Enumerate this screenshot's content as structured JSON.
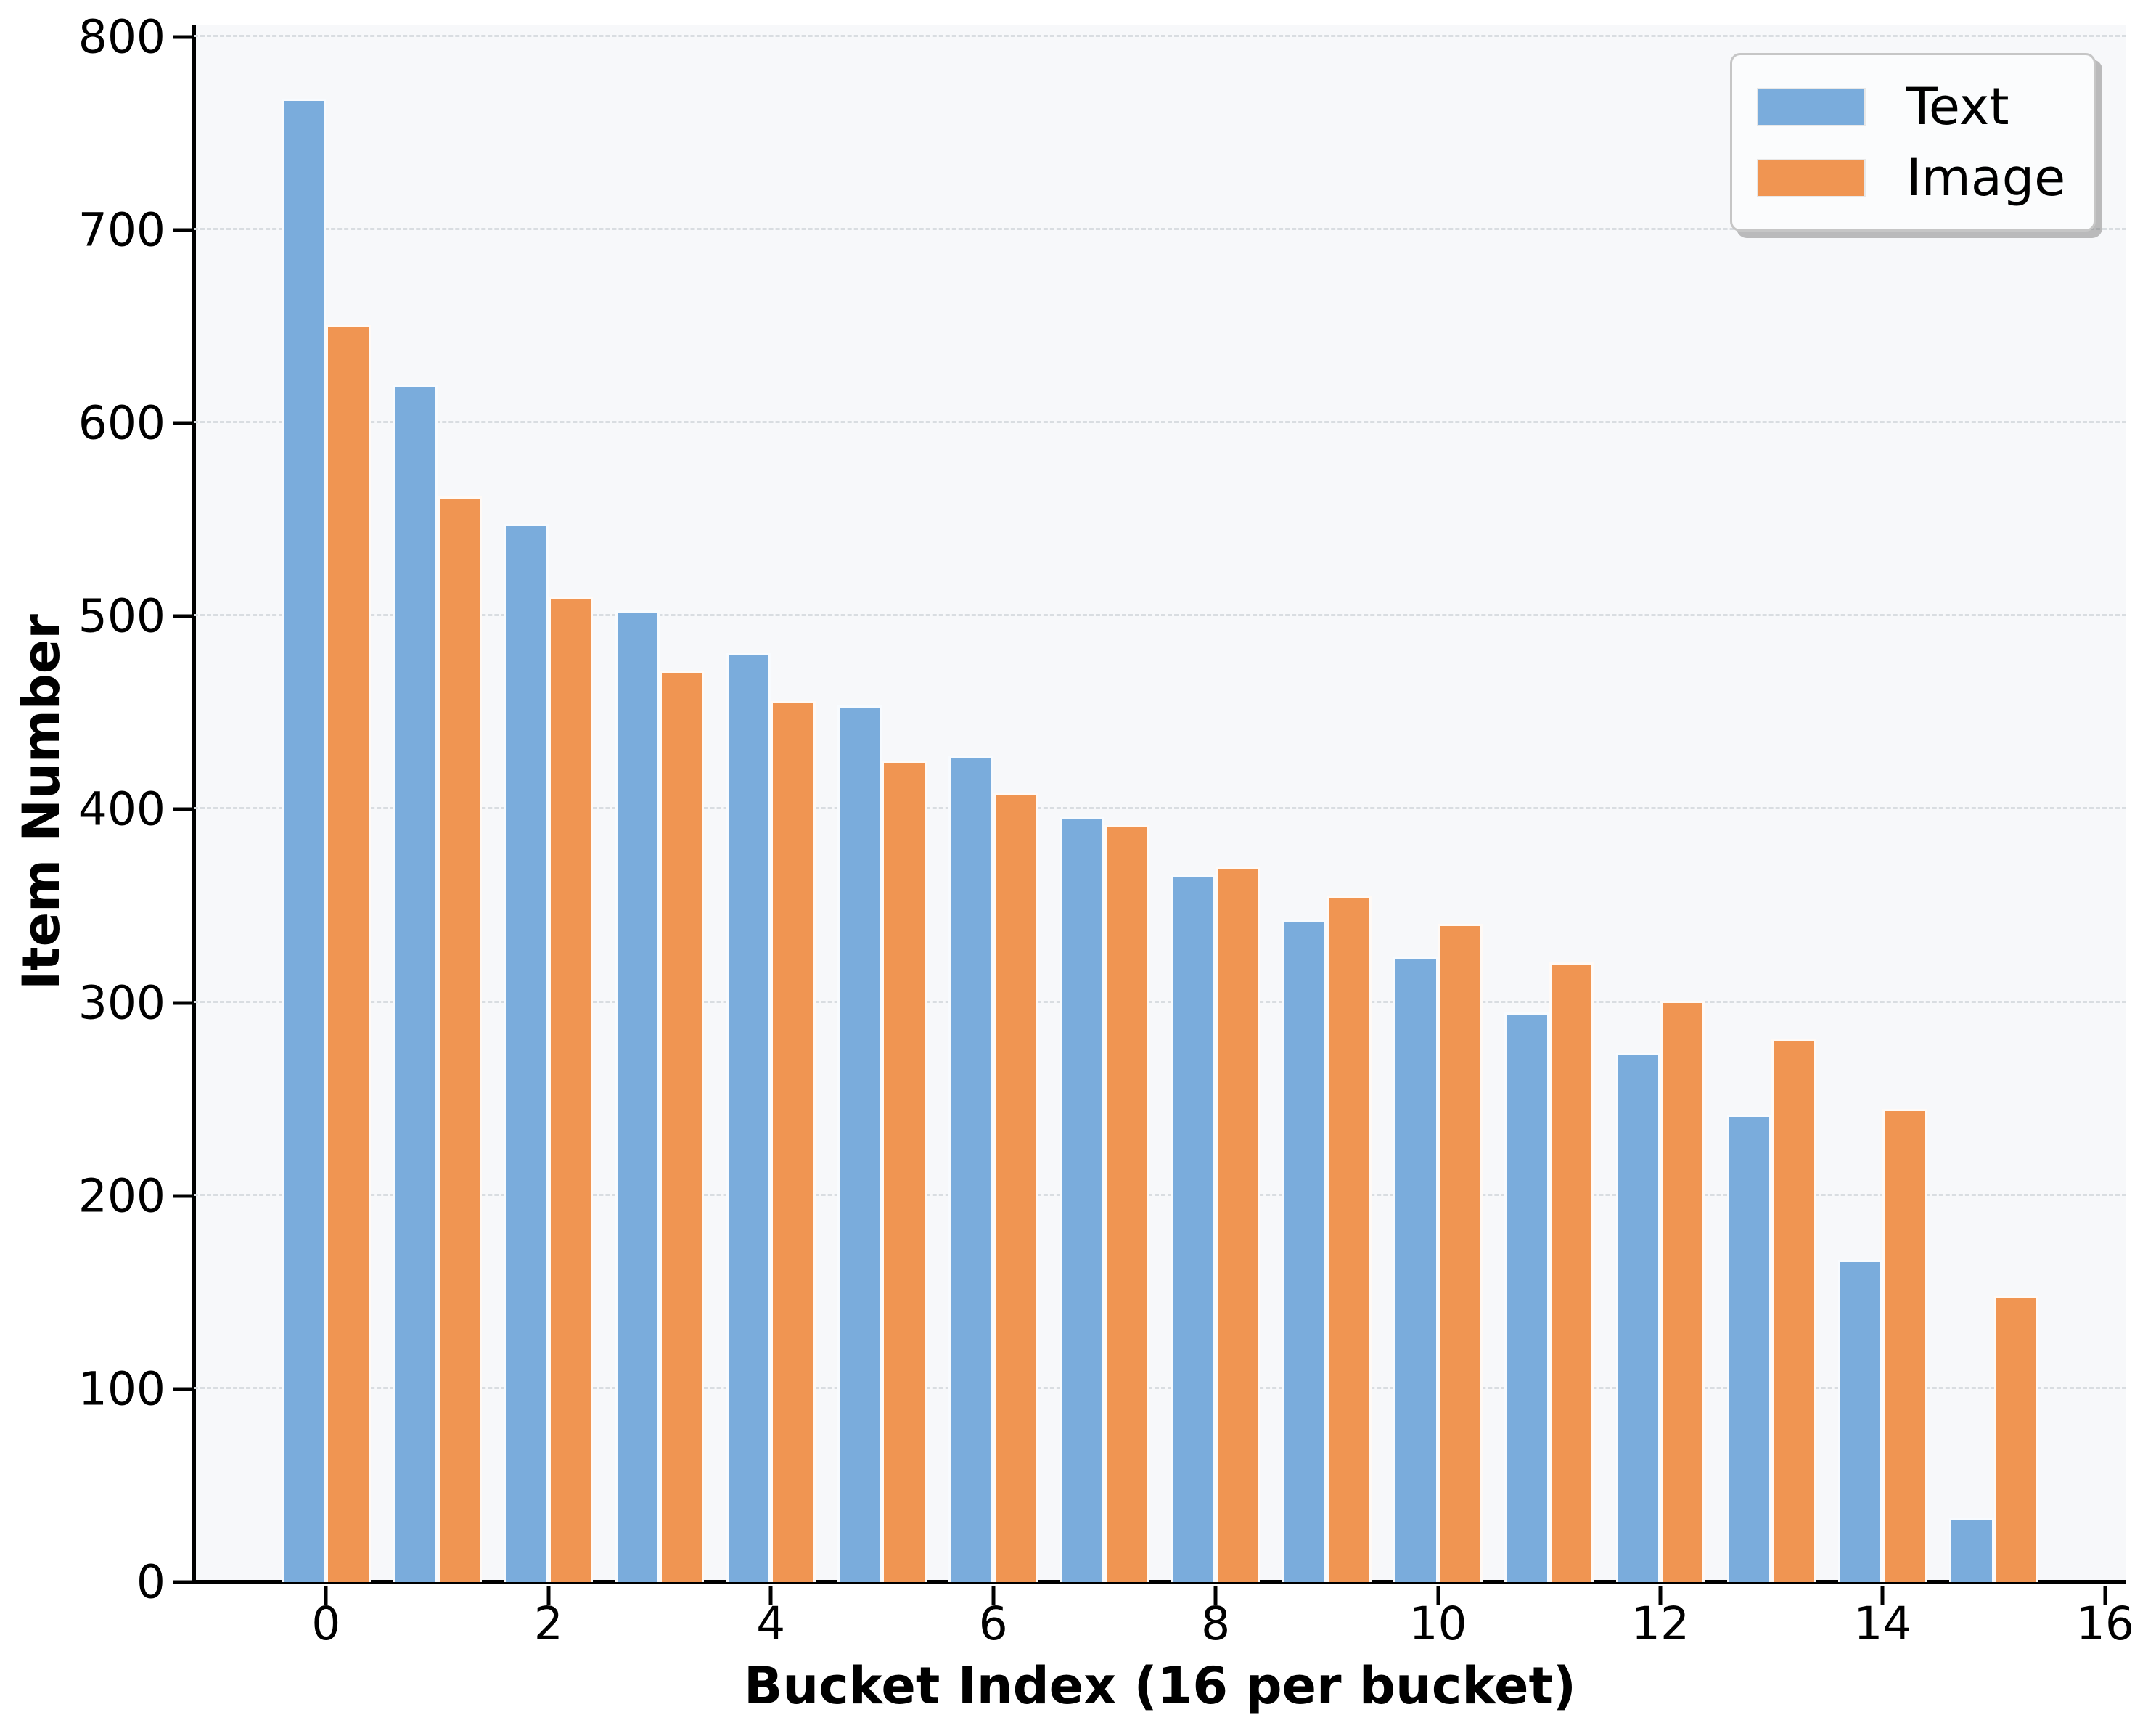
{
  "figure": {
    "background": "#ffffff",
    "plot_background": "#f7f8fa",
    "grid_color": "#d9dde1",
    "spine_color": "#000000",
    "bar_edge_color": "#ffffff"
  },
  "chart_data": {
    "type": "bar",
    "title": "",
    "xlabel": "Bucket Index (16 per bucket)",
    "ylabel": "Item Number",
    "categories": [
      0,
      1,
      2,
      3,
      4,
      5,
      6,
      7,
      8,
      9,
      10,
      11,
      12,
      13,
      14,
      15
    ],
    "series": [
      {
        "name": "Text",
        "color": "#7AACDC",
        "values": [
          768,
          620,
          548,
          503,
          481,
          454,
          428,
          396,
          366,
          343,
          324,
          295,
          274,
          242,
          167,
          33
        ]
      },
      {
        "name": "Image",
        "color": "#F09552",
        "values": [
          651,
          562,
          510,
          472,
          456,
          425,
          409,
          392,
          370,
          355,
          341,
          321,
          301,
          281,
          245,
          148
        ]
      }
    ],
    "bar_width": 0.4,
    "xlim": [
      -1.19,
      16.19
    ],
    "ylim": [
      0,
      806
    ],
    "yticks": [
      0,
      100,
      200,
      300,
      400,
      500,
      600,
      700,
      800
    ],
    "xticks": [
      0,
      2,
      4,
      6,
      8,
      10,
      12,
      14,
      16
    ],
    "grid": "horizontal dashed",
    "legend_position": "upper right"
  }
}
